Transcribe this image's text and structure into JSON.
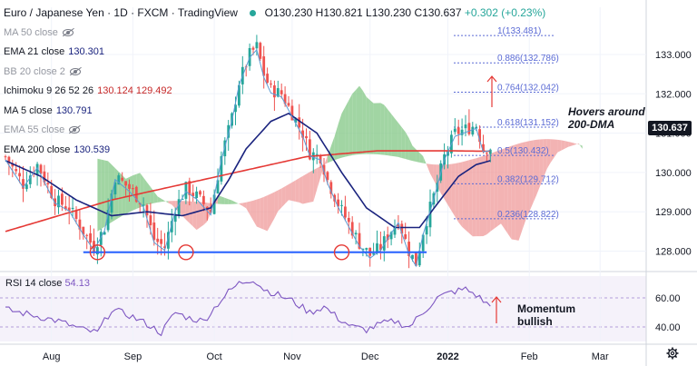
{
  "header": {
    "symbol": "Euro / Japanese Yen · 1D · FXCM · TradingView",
    "open": "O130.230",
    "high": "H130.821",
    "low": "L130.230",
    "close": "C130.637",
    "change": "+0.302 (+0.23%)"
  },
  "indicators": [
    {
      "label": "MA 50 close",
      "value": "",
      "muted": true
    },
    {
      "label": "EMA 21 close",
      "value": "130.301",
      "muted": false
    },
    {
      "label": "BB 20 close 2",
      "value": "",
      "muted": true
    },
    {
      "label": "Ichimoku 9 26 52 26",
      "value": "130.124  129.492",
      "muted": false
    },
    {
      "label": "MA 5 close",
      "value": "130.791",
      "muted": false
    },
    {
      "label": "EMA 55 close",
      "value": "",
      "muted": true
    },
    {
      "label": "EMA 200 close",
      "value": "130.539",
      "muted": false
    }
  ],
  "rsi_legend": {
    "label": "RSI 14 close",
    "value": "54.13"
  },
  "annotations": {
    "hovers": [
      "Hovers around",
      "200-DMA"
    ],
    "momentum": [
      "Momentum",
      "bullish"
    ]
  },
  "last_price": "130.637",
  "colors": {
    "up": "#26a69a",
    "down": "#ef5350",
    "ema200": "#e53935",
    "ema21": "#1a237e",
    "ma5": "#5b9bd5",
    "support": "#2962ff",
    "fib": "#5b6bd5",
    "rsi": "#7e57c2",
    "cloud_bull": "#81c784",
    "cloud_bear": "#ef9a9a",
    "arrow": "#e53935"
  },
  "chart_data": {
    "type": "candlestick",
    "price_axis": {
      "ticks": [
        128.0,
        129.0,
        130.0,
        131.0,
        132.0,
        133.0
      ],
      "range": [
        127.55,
        134.2
      ]
    },
    "rsi_axis": {
      "ticks": [
        40.0,
        60.0
      ],
      "range": [
        30,
        75
      ]
    },
    "time_axis": {
      "labels": [
        "Aug",
        "Sep",
        "Oct",
        "Nov",
        "Dec",
        "2022",
        "Feb",
        "Mar"
      ]
    },
    "fibonacci": [
      {
        "label": "1(133.481)",
        "price": 133.481
      },
      {
        "label": "0.886(132.786)",
        "price": 132.786
      },
      {
        "label": "0.764(132.042)",
        "price": 132.042
      },
      {
        "label": "0.618(131.152)",
        "price": 131.152
      },
      {
        "label": "0.5(130.432)",
        "price": 130.432
      },
      {
        "label": "0.382(129.712)",
        "price": 129.712
      },
      {
        "label": "0.236(128.822)",
        "price": 128.822
      }
    ],
    "support_level": 127.97,
    "key_path": [
      [
        0,
        130.4
      ],
      [
        5,
        129.7
      ],
      [
        9,
        130.2
      ],
      [
        14,
        129.3
      ],
      [
        18,
        129.1
      ],
      [
        22,
        128.5
      ],
      [
        25,
        128.1
      ],
      [
        28,
        128.6
      ],
      [
        31,
        129.9
      ],
      [
        35,
        129.6
      ],
      [
        39,
        129.2
      ],
      [
        42,
        128.3
      ],
      [
        45,
        128.1
      ],
      [
        48,
        129.1
      ],
      [
        51,
        129.6
      ],
      [
        54,
        129.4
      ],
      [
        58,
        129.0
      ],
      [
        61,
        130.4
      ],
      [
        64,
        131.4
      ],
      [
        66,
        132.3
      ],
      [
        69,
        133.0
      ],
      [
        71,
        133.2
      ],
      [
        73,
        132.5
      ],
      [
        75,
        132.1
      ],
      [
        78,
        132.0
      ],
      [
        81,
        131.5
      ],
      [
        84,
        131.0
      ],
      [
        86,
        130.5
      ],
      [
        89,
        130.4
      ],
      [
        91,
        129.8
      ],
      [
        94,
        129.2
      ],
      [
        97,
        128.7
      ],
      [
        100,
        128.2
      ],
      [
        103,
        127.9
      ],
      [
        106,
        128.1
      ],
      [
        108,
        128.4
      ],
      [
        111,
        128.8
      ],
      [
        114,
        128.0
      ],
      [
        116,
        127.7
      ],
      [
        118,
        128.5
      ],
      [
        121,
        129.4
      ],
      [
        124,
        130.4
      ],
      [
        127,
        131.0
      ],
      [
        130,
        131.1
      ],
      [
        133,
        131.2
      ],
      [
        135,
        130.6
      ],
      [
        137,
        130.64
      ]
    ],
    "ema200_path": [
      [
        0,
        128.5
      ],
      [
        30,
        129.3
      ],
      [
        60,
        129.9
      ],
      [
        85,
        130.4
      ],
      [
        105,
        130.55
      ],
      [
        125,
        130.55
      ],
      [
        137,
        130.54
      ]
    ],
    "ema21_path": [
      [
        0,
        130.3
      ],
      [
        10,
        129.9
      ],
      [
        20,
        129.3
      ],
      [
        30,
        128.9
      ],
      [
        40,
        129.0
      ],
      [
        50,
        128.9
      ],
      [
        58,
        129.1
      ],
      [
        63,
        129.8
      ],
      [
        68,
        130.6
      ],
      [
        75,
        131.3
      ],
      [
        80,
        131.5
      ],
      [
        88,
        131.0
      ],
      [
        95,
        130.0
      ],
      [
        102,
        129.1
      ],
      [
        110,
        128.6
      ],
      [
        117,
        128.6
      ],
      [
        122,
        129.2
      ],
      [
        128,
        129.9
      ],
      [
        133,
        130.2
      ],
      [
        137,
        130.3
      ]
    ],
    "rsi_path": [
      [
        0,
        52
      ],
      [
        8,
        48
      ],
      [
        15,
        44
      ],
      [
        22,
        38
      ],
      [
        26,
        36
      ],
      [
        30,
        52
      ],
      [
        35,
        48
      ],
      [
        40,
        42
      ],
      [
        44,
        36
      ],
      [
        48,
        50
      ],
      [
        52,
        46
      ],
      [
        56,
        44
      ],
      [
        60,
        56
      ],
      [
        63,
        64
      ],
      [
        66,
        70
      ],
      [
        70,
        73
      ],
      [
        73,
        66
      ],
      [
        77,
        62
      ],
      [
        81,
        58
      ],
      [
        86,
        50
      ],
      [
        90,
        54
      ],
      [
        94,
        46
      ],
      [
        98,
        40
      ],
      [
        102,
        38
      ],
      [
        106,
        42
      ],
      [
        110,
        44
      ],
      [
        114,
        40
      ],
      [
        118,
        50
      ],
      [
        122,
        60
      ],
      [
        126,
        64
      ],
      [
        130,
        66
      ],
      [
        133,
        62
      ],
      [
        135,
        58
      ],
      [
        137,
        54.13
      ]
    ],
    "cloud_future_shift": 26,
    "annotations": [
      "Hovers around",
      "200-DMA",
      "Momentum",
      "bullish"
    ]
  }
}
